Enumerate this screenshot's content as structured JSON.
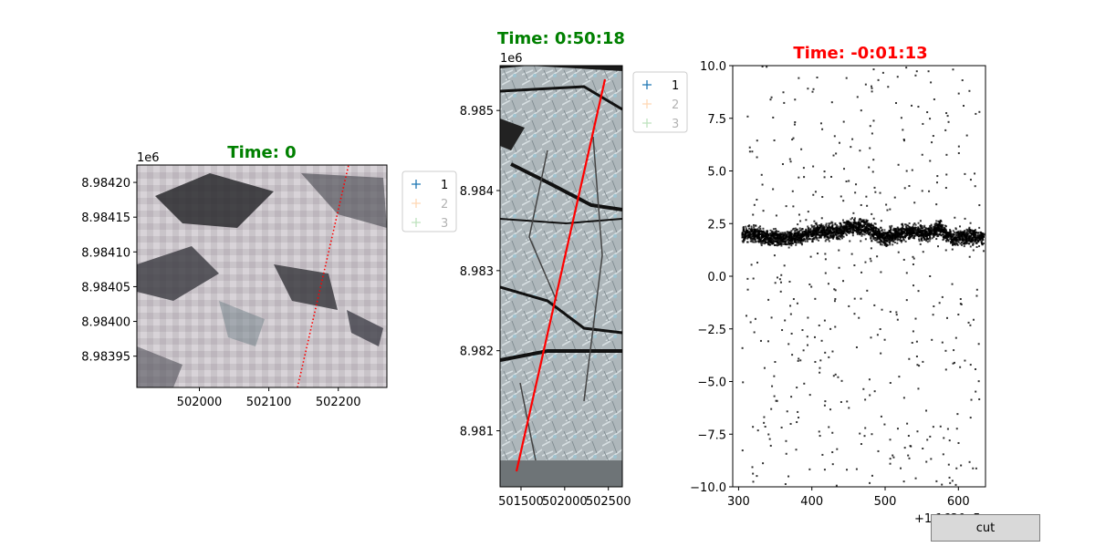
{
  "colors": {
    "title_green": "#008000",
    "title_red": "#ff0000",
    "track": "#ff0000",
    "series_1": "#1f77b4",
    "series_2": "#ff7f0e",
    "series_3": "#2ca02c",
    "points": "#000000"
  },
  "button": {
    "label": "cut",
    "icon": "none"
  },
  "chart_data": [
    {
      "type": "image",
      "title": "Time: 0",
      "title_color": "#008000",
      "xlabel": "",
      "ylabel": "",
      "xlim": [
        501910,
        502270
      ],
      "ylim": [
        8983905,
        8984225
      ],
      "x_ticks": [
        502000,
        502100,
        502200
      ],
      "x_tick_labels": [
        "502000",
        "502100",
        "502200"
      ],
      "y_ticks": [
        8983950,
        8984000,
        8984050,
        8984100,
        8984150,
        8984200
      ],
      "y_tick_labels": [
        "8.98395",
        "8.98400",
        "8.98405",
        "8.98410",
        "8.98415",
        "8.98420"
      ],
      "y_offset_label": "1e6",
      "track_line": {
        "x": [
          502140,
          502212
        ],
        "y": [
          8983905,
          8984225
        ],
        "style": "dotted"
      },
      "legend": {
        "placement": "outside-right",
        "entries": [
          "1",
          "2",
          "3"
        ],
        "markers": [
          "+",
          "+",
          "+"
        ],
        "alpha": [
          1,
          0.3,
          0.3
        ]
      }
    },
    {
      "type": "image",
      "title": "Time: 0:50:18",
      "title_color": "#008000",
      "xlabel": "",
      "ylabel": "",
      "xlim": [
        501260,
        502660
      ],
      "ylim": [
        8980300,
        8985560
      ],
      "x_ticks": [
        501500,
        502000,
        502500
      ],
      "x_tick_labels": [
        "501500",
        "502000",
        "502500"
      ],
      "y_ticks": [
        8981000,
        8982000,
        8983000,
        8984000,
        8985000
      ],
      "y_tick_labels": [
        "8.981",
        "8.982",
        "8.983",
        "8.984",
        "8.985"
      ],
      "y_offset_label": "1e6",
      "track_line": {
        "x": [
          501440,
          502460
        ],
        "y": [
          8980480,
          8985400
        ],
        "style": "solid"
      },
      "legend": {
        "placement": "outside-right",
        "entries": [
          "1",
          "2",
          "3"
        ],
        "markers": [
          "+",
          "+",
          "+"
        ],
        "alpha": [
          1,
          0.3,
          0.3
        ]
      }
    },
    {
      "type": "scatter",
      "title": "Time: -0:01:13",
      "title_color": "#ff0000",
      "xlabel": "",
      "ylabel": "",
      "xlim": [
        292,
        637
      ],
      "ylim": [
        -10,
        10
      ],
      "x_ticks": [
        300,
        400,
        500,
        600
      ],
      "x_tick_labels": [
        "300",
        "400",
        "500",
        "600"
      ],
      "y_ticks": [
        -10,
        -7.5,
        -5,
        -2.5,
        0,
        2.5,
        5,
        7.5,
        10
      ],
      "y_tick_labels": [
        "−10.0",
        "−7.5",
        "−5.0",
        "−2.5",
        "0.0",
        "2.5",
        "5.0",
        "7.5",
        "10.0"
      ],
      "x_offset_label": "+1.1620e5",
      "grid": false,
      "dense_band": {
        "x": [
          305,
          320,
          335,
          350,
          365,
          380,
          395,
          410,
          425,
          440,
          455,
          470,
          485,
          500,
          515,
          530,
          545,
          560,
          575,
          590,
          605,
          620,
          635
        ],
        "y": [
          2.0,
          2.0,
          1.9,
          1.8,
          1.8,
          1.85,
          2.0,
          2.1,
          2.1,
          2.2,
          2.35,
          2.35,
          2.1,
          1.8,
          2.0,
          2.1,
          2.1,
          2.0,
          2.3,
          1.8,
          1.85,
          1.9,
          1.9
        ]
      },
      "scatter_y_range": [
        -10,
        10
      ],
      "scatter_count": 480
    }
  ]
}
